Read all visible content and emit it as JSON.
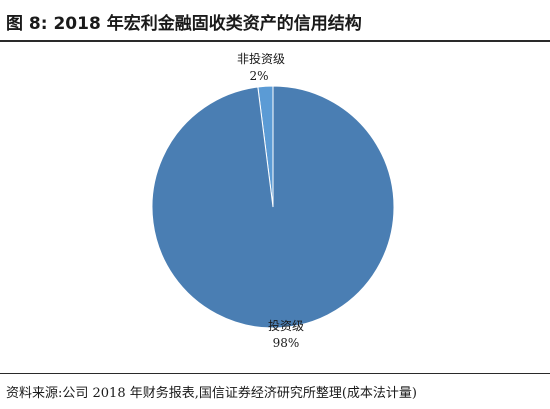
{
  "figure": {
    "title": "图 8:  2018 年宏利金融固收类资产的信用结构",
    "source_note": "资料来源:公司 2018 年财务报表,国信证券经济研究所整理(成本法计量)"
  },
  "colors": {
    "investment_grade": "#4A7EB3",
    "non_investment_grade": "#5B9BD5",
    "slice_border": "#ffffff"
  },
  "chart_data": {
    "type": "pie",
    "title": "",
    "slices": [
      {
        "name": "非投资级",
        "value": 2,
        "label_value": "2%",
        "color": "#5B9BD5"
      },
      {
        "name": "投资级",
        "value": 98,
        "label_value": "98%",
        "color": "#4A7EB3"
      }
    ],
    "legend": "none"
  }
}
